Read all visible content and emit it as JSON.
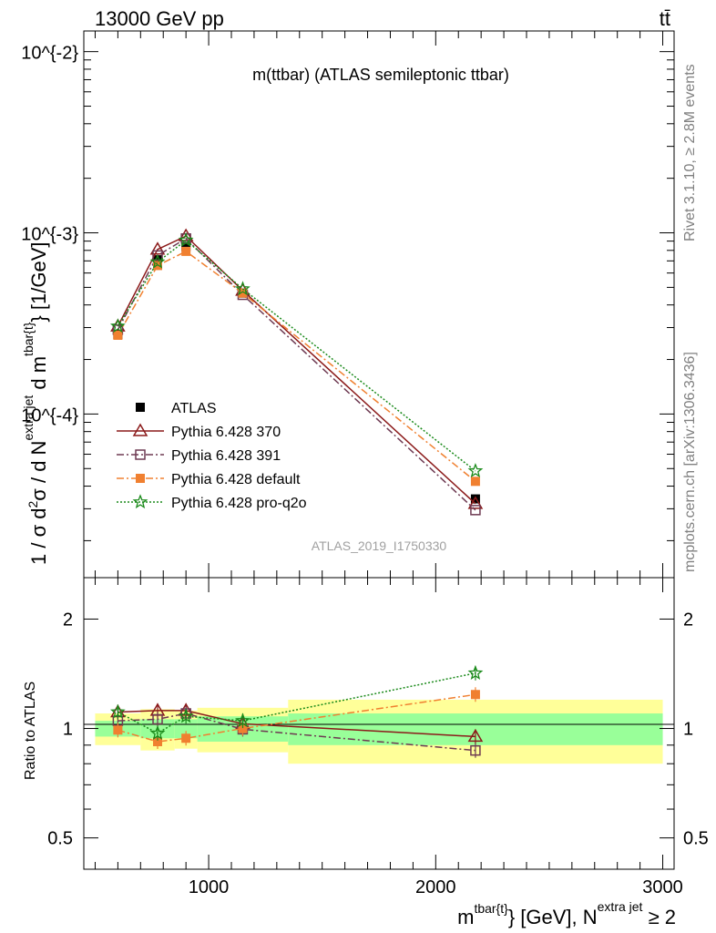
{
  "header": {
    "left": "13000 GeV pp",
    "right": "tt̄"
  },
  "side_labels": {
    "rivet": "Rivet 3.1.10, ≥ 2.8M events",
    "mcplots": "mcplots.cern.ch [arXiv:1306.3436]"
  },
  "watermark": "ATLAS_2019_I1750330",
  "chart_data": [
    {
      "type": "line",
      "title": "m(ttbar) (ATLAS semileptonic ttbar)",
      "ylabel": "1 / σ d²σ / d N^{extra jet} d m^{tbar{t}} [1/GeV]",
      "yscale": "log",
      "xlim": [
        450,
        3050
      ],
      "ylim": [
        1.25e-05,
        0.013
      ],
      "ytick_labels": [
        "10^{-4}",
        "10^{-3}",
        "10^{-2}"
      ],
      "grid": false,
      "legend_position": "center-left",
      "series": [
        {
          "name": "ATLAS",
          "color": "#000000",
          "marker": "filled-square",
          "x": [
            600,
            775,
            900,
            1150,
            2175
          ],
          "y": [
            0.000275,
            0.00071,
            0.00084,
            0.000465,
            3.4e-05
          ]
        },
        {
          "name": "Pythia 6.428 370",
          "color": "#8b1a1a",
          "marker": "open-triangle",
          "line": "solid",
          "x": [
            600,
            775,
            900,
            1150,
            2175
          ],
          "y": [
            0.000305,
            0.00081,
            0.00096,
            0.00048,
            3.2e-05
          ]
        },
        {
          "name": "Pythia 6.428 391",
          "color": "#6e3a52",
          "marker": "open-square",
          "line": "dashdot",
          "x": [
            600,
            775,
            900,
            1150,
            2175
          ],
          "y": [
            0.000292,
            0.00075,
            0.00093,
            0.000455,
            2.95e-05
          ]
        },
        {
          "name": "Pythia 6.428 default",
          "color": "#f08030",
          "marker": "filled-square",
          "line": "dashdot",
          "x": [
            600,
            775,
            900,
            1150,
            2175
          ],
          "y": [
            0.000272,
            0.00066,
            0.00079,
            0.000465,
            4.25e-05
          ]
        },
        {
          "name": "Pythia 6.428 pro-q2o",
          "color": "#1a8a1a",
          "marker": "star",
          "line": "dotted",
          "x": [
            600,
            775,
            900,
            1150,
            2175
          ],
          "y": [
            0.000305,
            0.00069,
            0.00091,
            0.00049,
            4.85e-05
          ]
        }
      ]
    },
    {
      "type": "line",
      "ylabel": "Ratio to ATLAS",
      "xlabel": "m^{tbar{t}} [GeV], N^{extra jet} ≥ 2",
      "yscale": "log",
      "xlim": [
        450,
        3050
      ],
      "ylim": [
        0.41,
        2.6
      ],
      "x_ticks": [
        1000,
        2000,
        3000
      ],
      "y_ticks": [
        0.5,
        1,
        2
      ],
      "bins": [
        {
          "x_low": 500,
          "x_high": 700,
          "inner": [
            0.95,
            1.05
          ],
          "outer": [
            0.9,
            1.1
          ]
        },
        {
          "x_low": 700,
          "x_high": 850,
          "inner": [
            0.94,
            1.06
          ],
          "outer": [
            0.87,
            1.13
          ]
        },
        {
          "x_low": 850,
          "x_high": 950,
          "inner": [
            0.94,
            1.06
          ],
          "outer": [
            0.88,
            1.12
          ]
        },
        {
          "x_low": 950,
          "x_high": 1350,
          "inner": [
            0.92,
            1.08
          ],
          "outer": [
            0.86,
            1.14
          ]
        },
        {
          "x_low": 1350,
          "x_high": 3000,
          "inner": [
            0.9,
            1.1
          ],
          "outer": [
            0.8,
            1.2
          ]
        }
      ],
      "band_colors": {
        "inner": "#99ff99",
        "outer": "#ffff99"
      },
      "series": [
        {
          "name": "Pythia 6.428 370",
          "color": "#8b1a1a",
          "x": [
            600,
            775,
            900,
            1150,
            2175
          ],
          "y": [
            1.11,
            1.12,
            1.12,
            1.03,
            0.95
          ]
        },
        {
          "name": "Pythia 6.428 391",
          "color": "#6e3a52",
          "x": [
            600,
            775,
            900,
            1150,
            2175
          ],
          "y": [
            1.05,
            1.06,
            1.1,
            0.995,
            0.87
          ]
        },
        {
          "name": "Pythia 6.428 default",
          "color": "#f08030",
          "x": [
            600,
            775,
            900,
            1150,
            2175
          ],
          "y": [
            0.99,
            0.92,
            0.94,
            1.0,
            1.24
          ]
        },
        {
          "name": "Pythia 6.428 pro-q2o",
          "color": "#1a8a1a",
          "x": [
            600,
            775,
            900,
            1150,
            2175
          ],
          "y": [
            1.11,
            0.97,
            1.08,
            1.05,
            1.42
          ]
        }
      ]
    }
  ]
}
